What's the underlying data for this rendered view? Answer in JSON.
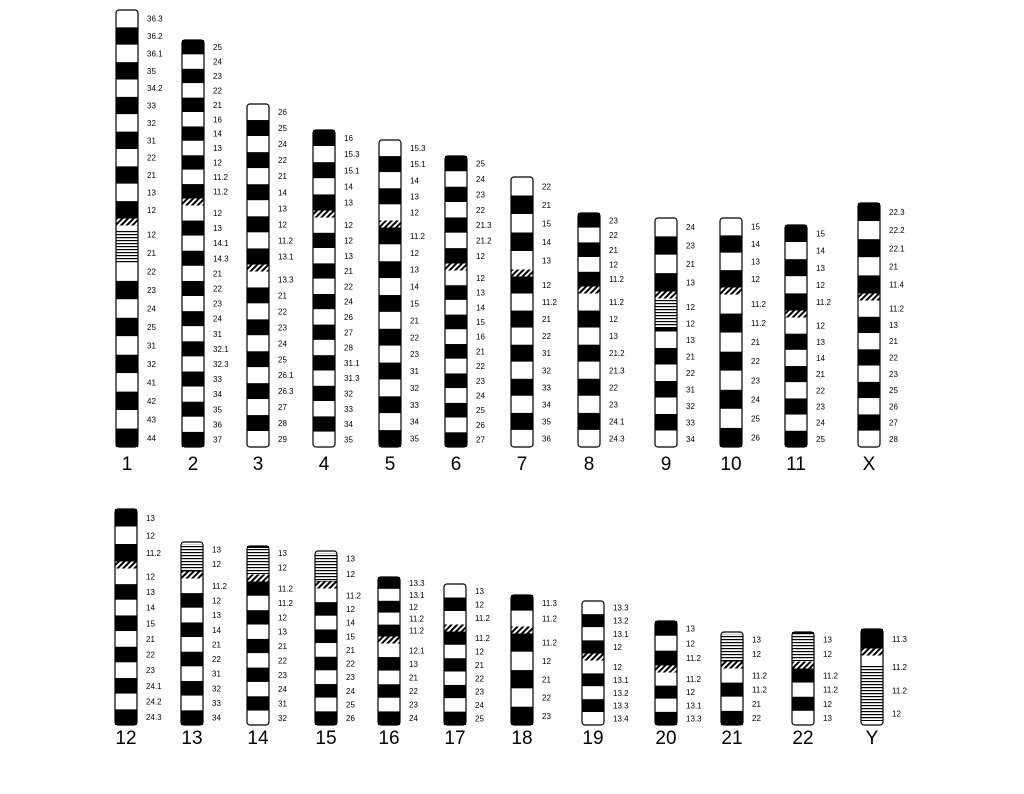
{
  "rows": [
    {
      "chromosomes": [
        {
          "name": "1",
          "bands": [
            "36.3",
            "36.2",
            "36.1",
            "35",
            "34.2",
            "33",
            "32",
            "31",
            "22",
            "21",
            "13",
            "12",
            "12",
            "21",
            "22",
            "23",
            "24",
            "25",
            "31",
            "32",
            "41",
            "42",
            "43",
            "44"
          ]
        },
        {
          "name": "2",
          "bands": [
            "25",
            "24",
            "23",
            "22",
            "21",
            "16",
            "14",
            "13",
            "12",
            "11.2",
            "11.2",
            "12",
            "13",
            "14.1",
            "14.3",
            "21",
            "22",
            "23",
            "24",
            "31",
            "32.1",
            "32.3",
            "33",
            "34",
            "35",
            "36",
            "37"
          ]
        },
        {
          "name": "3",
          "bands": [
            "26",
            "25",
            "24",
            "22",
            "21",
            "14",
            "13",
            "12",
            "11.2",
            "13.1",
            "13.3",
            "21",
            "22",
            "23",
            "24",
            "25",
            "26.1",
            "26.3",
            "27",
            "28",
            "29"
          ]
        },
        {
          "name": "4",
          "bands": [
            "16",
            "15.3",
            "15.1",
            "14",
            "13",
            "12",
            "12",
            "13",
            "21",
            "22",
            "24",
            "26",
            "27",
            "28",
            "31.1",
            "31.3",
            "32",
            "33",
            "34",
            "35"
          ]
        },
        {
          "name": "5",
          "bands": [
            "15.3",
            "15.1",
            "14",
            "13",
            "12",
            "11.2",
            "12",
            "13",
            "14",
            "15",
            "21",
            "22",
            "23",
            "31",
            "32",
            "33",
            "34",
            "35"
          ]
        },
        {
          "name": "6",
          "bands": [
            "25",
            "24",
            "23",
            "22",
            "21.3",
            "21.2",
            "12",
            "12",
            "13",
            "14",
            "15",
            "16",
            "21",
            "22",
            "23",
            "24",
            "25",
            "26",
            "27"
          ]
        },
        {
          "name": "7",
          "bands": [
            "22",
            "21",
            "15",
            "14",
            "13",
            "12",
            "11.2",
            "21",
            "22",
            "31",
            "32",
            "33",
            "34",
            "35",
            "36"
          ]
        },
        {
          "name": "8",
          "bands": [
            "23",
            "22",
            "21",
            "12",
            "11.2",
            "11.2",
            "12",
            "13",
            "21.2",
            "21.3",
            "22",
            "23",
            "24.1",
            "24.3"
          ]
        },
        {
          "name": "9",
          "bands": [
            "24",
            "23",
            "21",
            "13",
            "12",
            "12",
            "13",
            "21",
            "22",
            "31",
            "32",
            "33",
            "34"
          ]
        },
        {
          "name": "10",
          "bands": [
            "15",
            "14",
            "13",
            "12",
            "11.2",
            "11.2",
            "21",
            "22",
            "23",
            "24",
            "25",
            "26"
          ]
        },
        {
          "name": "11",
          "bands": [
            "15",
            "14",
            "13",
            "12",
            "11.2",
            "12",
            "13",
            "14",
            "21",
            "22",
            "23",
            "24",
            "25"
          ]
        },
        {
          "name": "X",
          "bands": [
            "22.3",
            "22.2",
            "22.1",
            "21",
            "11.4",
            "11.2",
            "13",
            "21",
            "22",
            "23",
            "25",
            "26",
            "27",
            "28"
          ]
        }
      ]
    },
    {
      "chromosomes": [
        {
          "name": "12",
          "bands": [
            "13",
            "12",
            "11.2",
            "12",
            "13",
            "14",
            "15",
            "21",
            "22",
            "23",
            "24.1",
            "24.2",
            "24.3"
          ]
        },
        {
          "name": "13",
          "bands": [
            "13",
            "12",
            "11.2",
            "12",
            "13",
            "14",
            "21",
            "22",
            "31",
            "32",
            "33",
            "34"
          ]
        },
        {
          "name": "14",
          "bands": [
            "13",
            "12",
            "11.2",
            "11.2",
            "12",
            "13",
            "21",
            "22",
            "23",
            "24",
            "31",
            "32"
          ]
        },
        {
          "name": "15",
          "bands": [
            "13",
            "12",
            "11.2",
            "12",
            "14",
            "15",
            "21",
            "22",
            "23",
            "24",
            "25",
            "26"
          ]
        },
        {
          "name": "16",
          "bands": [
            "13.3",
            "13.1",
            "12",
            "11.2",
            "11.2",
            "12.1",
            "13",
            "21",
            "22",
            "23",
            "24"
          ]
        },
        {
          "name": "17",
          "bands": [
            "13",
            "12",
            "11.2",
            "11.2",
            "12",
            "21",
            "22",
            "23",
            "24",
            "25"
          ]
        },
        {
          "name": "18",
          "bands": [
            "11.3",
            "11.2",
            "11.2",
            "12",
            "21",
            "22",
            "23"
          ]
        },
        {
          "name": "19",
          "bands": [
            "13.3",
            "13.2",
            "13.1",
            "12",
            "12",
            "13.1",
            "13.2",
            "13.3",
            "13.4"
          ]
        },
        {
          "name": "20",
          "bands": [
            "13",
            "12",
            "11.2",
            "11.2",
            "12",
            "13.1",
            "13.3"
          ]
        },
        {
          "name": "21",
          "bands": [
            "13",
            "12",
            "11.2",
            "11.2",
            "21",
            "22"
          ]
        },
        {
          "name": "22",
          "bands": [
            "13",
            "12",
            "11.2",
            "11.2",
            "12",
            "13"
          ]
        },
        {
          "name": "Y",
          "bands": [
            "11.3",
            "11.2",
            "11.2",
            "12"
          ]
        }
      ]
    }
  ]
}
